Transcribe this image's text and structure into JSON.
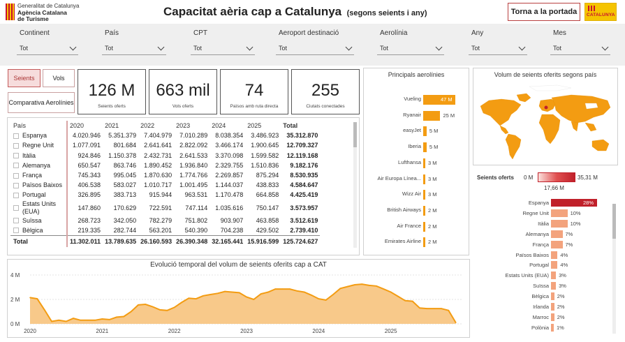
{
  "header": {
    "org_line1": "Generalitat de Catalunya",
    "org_line2": "Agència Catalana",
    "org_line3": "de Turisme",
    "title": "Capacitat aèria cap a Catalunya",
    "subtitle": "(segons seients i any)",
    "home_button": "Torna a la portada",
    "brand_logo": "CATALUNYA"
  },
  "filters": [
    {
      "label": "Continent",
      "value": "Tot"
    },
    {
      "label": "País",
      "value": "Tot"
    },
    {
      "label": "CPT",
      "value": "Tot"
    },
    {
      "label": "Aeroport destinació",
      "value": "Tot"
    },
    {
      "label": "Aerolínia",
      "value": "Tot"
    },
    {
      "label": "Any",
      "value": "Tot"
    },
    {
      "label": "Mes",
      "value": "Tot"
    }
  ],
  "toggles": {
    "seients": "Seients",
    "vols": "Vols",
    "comparativa": "Comparativa Aerolínies"
  },
  "kpis": [
    {
      "value": "126 M",
      "caption": "Seients oferts"
    },
    {
      "value": "663 mil",
      "caption": "Vols oferts"
    },
    {
      "value": "74",
      "caption": "Països amb ruta directa"
    },
    {
      "value": "255",
      "caption": "Ciutats conectades"
    }
  ],
  "table": {
    "headers": [
      "País",
      "2020",
      "2021",
      "2022",
      "2023",
      "2024",
      "2025",
      "Total"
    ],
    "rows": [
      [
        "Espanya",
        "4.020.946",
        "5.351.379",
        "7.404.979",
        "7.010.289",
        "8.038.354",
        "3.486.923",
        "35.312.870"
      ],
      [
        "Regne Unit",
        "1.077.091",
        "801.684",
        "2.641.641",
        "2.822.092",
        "3.466.174",
        "1.900.645",
        "12.709.327"
      ],
      [
        "Itàlia",
        "924.846",
        "1.150.378",
        "2.432.731",
        "2.641.533",
        "3.370.098",
        "1.599.582",
        "12.119.168"
      ],
      [
        "Alemanya",
        "650.547",
        "863.746",
        "1.890.452",
        "1.936.840",
        "2.329.755",
        "1.510.836",
        "9.182.176"
      ],
      [
        "França",
        "745.343",
        "995.045",
        "1.870.630",
        "1.774.766",
        "2.269.857",
        "875.294",
        "8.530.935"
      ],
      [
        "Països Baixos",
        "406.538",
        "583.027",
        "1.010.717",
        "1.001.495",
        "1.144.037",
        "438.833",
        "4.584.647"
      ],
      [
        "Portugal",
        "326.895",
        "383.713",
        "915.944",
        "963.531",
        "1.170.478",
        "664.858",
        "4.425.419"
      ],
      [
        "Estats Units (EUA)",
        "147.860",
        "170.629",
        "722.591",
        "747.114",
        "1.035.616",
        "750.147",
        "3.573.957"
      ],
      [
        "Suïssa",
        "268.723",
        "342.050",
        "782.279",
        "751.802",
        "903.907",
        "463.858",
        "3.512.619"
      ],
      [
        "Bèlgica",
        "219.335",
        "282.744",
        "563.201",
        "540.390",
        "704.238",
        "429.502",
        "2.739.410"
      ]
    ],
    "total": [
      "Total",
      "11.302.011",
      "13.789.635",
      "26.160.593",
      "26.390.348",
      "32.165.441",
      "15.916.599",
      "125.724.627"
    ]
  },
  "airlines": {
    "title": "Principals aerolínies",
    "items": [
      {
        "name": "Vueling",
        "value": 47,
        "label": "47 M"
      },
      {
        "name": "Ryanair",
        "value": 25,
        "label": "25 M"
      },
      {
        "name": "easyJet",
        "value": 5,
        "label": "5 M"
      },
      {
        "name": "Iberia",
        "value": 5,
        "label": "5 M"
      },
      {
        "name": "Lufthansa",
        "value": 3,
        "label": "3 M"
      },
      {
        "name": "Air Europa Línea...",
        "value": 3,
        "label": "3 M"
      },
      {
        "name": "Wizz Air",
        "value": 3,
        "label": "3 M"
      },
      {
        "name": "British Airways",
        "value": 2,
        "label": "2 M"
      },
      {
        "name": "Air France",
        "value": 2,
        "label": "2 M"
      },
      {
        "name": "Emirates Airline",
        "value": 2,
        "label": "2 M"
      }
    ]
  },
  "map": {
    "title": "Volum de seients oferits segons país"
  },
  "legend": {
    "label": "Seients oferts",
    "min": "0 M",
    "max": "35,31 M",
    "mid": "17,66 M"
  },
  "country_bars": [
    {
      "name": "Espanya",
      "pct": 28,
      "label": "28%"
    },
    {
      "name": "Regne Unit",
      "pct": 10,
      "label": "10%"
    },
    {
      "name": "Itàlia",
      "pct": 10,
      "label": "10%"
    },
    {
      "name": "Alemanya",
      "pct": 7,
      "label": "7%"
    },
    {
      "name": "França",
      "pct": 7,
      "label": "7%"
    },
    {
      "name": "Països Baixos",
      "pct": 4,
      "label": "4%"
    },
    {
      "name": "Portugal",
      "pct": 4,
      "label": "4%"
    },
    {
      "name": "Estats Units (EUA)",
      "pct": 3,
      "label": "3%"
    },
    {
      "name": "Suïssa",
      "pct": 3,
      "label": "3%"
    },
    {
      "name": "Bèlgica",
      "pct": 2,
      "label": "2%"
    },
    {
      "name": "Irlanda",
      "pct": 2,
      "label": "2%"
    },
    {
      "name": "Marroc",
      "pct": 2,
      "label": "2%"
    },
    {
      "name": "Polònia",
      "pct": 1,
      "label": "1%"
    }
  ],
  "chart_data": {
    "type": "area",
    "title": "Evolució temporal del volum de seients oferits cap a CAT",
    "x_ticks": [
      "2020",
      "2021",
      "2022",
      "2023",
      "2024",
      "2025"
    ],
    "y_ticks": [
      "0 M",
      "2 M",
      "4 M"
    ],
    "ylim": [
      0,
      4
    ],
    "unit": "M",
    "x": [
      2020.0,
      2020.1,
      2020.2,
      2020.3,
      2020.4,
      2020.5,
      2020.6,
      2020.7,
      2020.8,
      2020.9,
      2021.0,
      2021.1,
      2021.2,
      2021.3,
      2021.4,
      2021.5,
      2021.6,
      2021.7,
      2021.8,
      2021.9,
      2022.0,
      2022.1,
      2022.2,
      2022.3,
      2022.4,
      2022.5,
      2022.6,
      2022.7,
      2022.8,
      2022.9,
      2023.0,
      2023.1,
      2023.2,
      2023.3,
      2023.4,
      2023.5,
      2023.6,
      2023.7,
      2023.8,
      2023.9,
      2024.0,
      2024.1,
      2024.2,
      2024.3,
      2024.4,
      2024.5,
      2024.6,
      2024.7,
      2024.8,
      2024.9,
      2025.0,
      2025.1,
      2025.2,
      2025.3,
      2025.4,
      2025.5,
      2025.6,
      2025.7,
      2025.8,
      2025.9
    ],
    "values": [
      2.15,
      2.05,
      1.15,
      0.2,
      0.3,
      0.2,
      0.45,
      0.3,
      0.3,
      0.3,
      0.4,
      0.35,
      0.55,
      0.6,
      1.0,
      1.55,
      1.6,
      1.4,
      1.15,
      1.1,
      1.35,
      1.75,
      2.1,
      2.05,
      2.3,
      2.4,
      2.5,
      2.65,
      2.6,
      2.55,
      2.2,
      2.0,
      2.45,
      2.6,
      2.85,
      2.85,
      2.85,
      2.7,
      2.6,
      2.35,
      2.05,
      1.95,
      2.4,
      2.9,
      3.05,
      3.2,
      3.25,
      3.15,
      3.1,
      2.85,
      2.6,
      2.25,
      1.9,
      1.85,
      1.3,
      1.25,
      1.25,
      1.25,
      1.1,
      0.1
    ]
  }
}
